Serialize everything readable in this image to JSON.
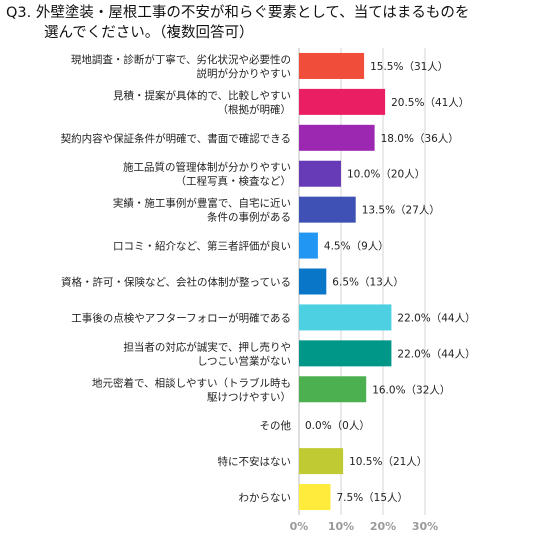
{
  "title": {
    "line1": "Q3. 外壁塗装・屋根工事の不安が和らぐ要素として、当てはまるものを",
    "line2": "選んでください。（複数回答可）"
  },
  "chart_data": {
    "type": "bar",
    "orientation": "horizontal",
    "title": "Q3. 外壁塗装・屋根工事の不安が和らぐ要素として、当てはまるものを選んでください。（複数回答可）",
    "categories": [
      [
        "現地調査・診断が丁寧で、劣化状況や必要性の",
        "説明が分かりやすい"
      ],
      [
        "見積・提案が具体的で、比較しやすい",
        "（根拠が明確）"
      ],
      [
        "契約内容や保証条件が明確で、書面で確認できる"
      ],
      [
        "施工品質の管理体制が分かりやすい",
        "（工程写真・検査など）"
      ],
      [
        "実績・施工事例が豊富で、自宅に近い",
        "条件の事例がある"
      ],
      [
        "口コミ・紹介など、第三者評価が良い"
      ],
      [
        "資格・許可・保険など、会社の体制が整っている"
      ],
      [
        "工事後の点検やアフターフォローが明確である"
      ],
      [
        "担当者の対応が誠実で、押し売りや",
        "しつこい営業がない"
      ],
      [
        "地元密着で、相談しやすい（トラブル時も",
        "駆けつけやすい）"
      ],
      [
        "その他"
      ],
      [
        "特に不安はない"
      ],
      [
        "わからない"
      ]
    ],
    "values": [
      15.5,
      20.5,
      18.0,
      10.0,
      13.5,
      4.5,
      6.5,
      22.0,
      22.0,
      16.0,
      0.0,
      10.5,
      7.5
    ],
    "value_labels": [
      "15.5%（31人）",
      "20.5%（41人）",
      "18.0%（36人）",
      "10.0%（20人）",
      "13.5%（27人）",
      "4.5%（9人）",
      "6.5%（13人）",
      "22.0%（44人）",
      "22.0%（44人）",
      "16.0%（32人）",
      "0.0%（0人）",
      "10.5%（21人）",
      "7.5%（15人）"
    ],
    "colors": [
      "#f04e3a",
      "#e91e63",
      "#9c27b0",
      "#673ab7",
      "#3f51b5",
      "#2196f3",
      "#0a76c8",
      "#4dd0e1",
      "#009688",
      "#4caf50",
      "#9e9e9e",
      "#c0ca33",
      "#ffeb3b"
    ],
    "xlim": [
      0,
      30
    ],
    "ticks": [
      0,
      10,
      20,
      30
    ],
    "tick_labels": [
      "0%",
      "10%",
      "20%",
      "30%"
    ],
    "grid": true,
    "legend": "none"
  }
}
